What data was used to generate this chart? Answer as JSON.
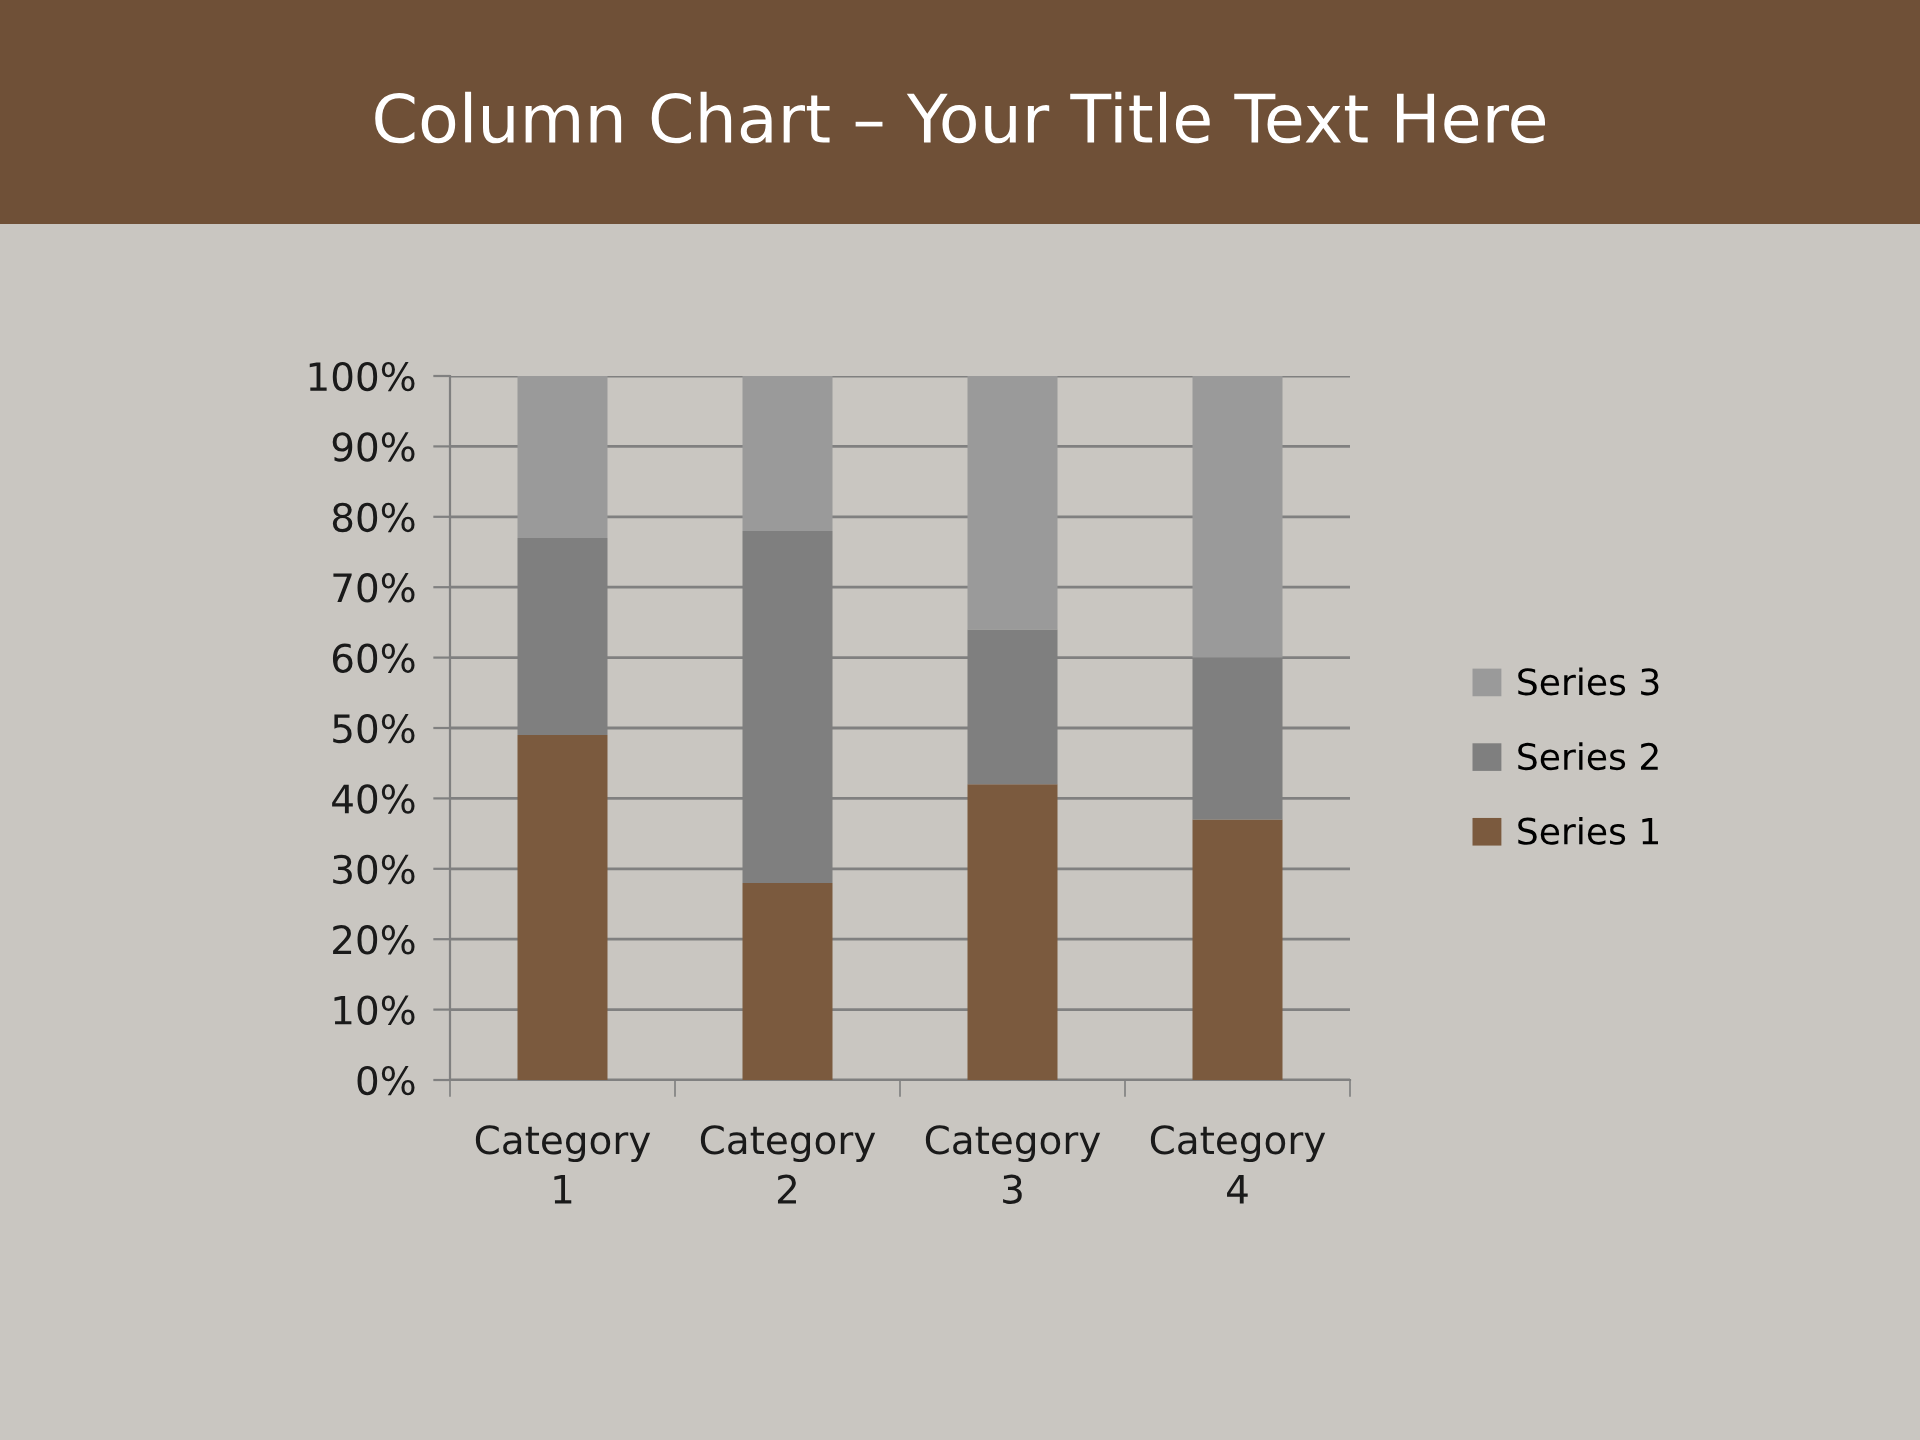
{
  "chart_data": {
    "type": "bar",
    "title": "Column Chart – Your Title Text Here",
    "stacked": true,
    "categories": [
      "Category 1",
      "Category 2",
      "Category 3",
      "Category 4"
    ],
    "series": [
      {
        "name": "Series 1",
        "color": "#7b5a3e",
        "values": [
          49,
          28,
          42,
          37
        ]
      },
      {
        "name": "Series 2",
        "color": "#7f7f7f",
        "values": [
          28,
          50,
          22,
          23
        ]
      },
      {
        "name": "Series 3",
        "color": "#9a9a9a",
        "values": [
          23,
          22,
          36,
          40
        ]
      }
    ],
    "ylim": [
      0,
      100
    ],
    "yticks": [
      {
        "value": 0,
        "label": "0%"
      },
      {
        "value": 10,
        "label": "10%"
      },
      {
        "value": 20,
        "label": "20%"
      },
      {
        "value": 30,
        "label": "30%"
      },
      {
        "value": 40,
        "label": "40%"
      },
      {
        "value": 50,
        "label": "50%"
      },
      {
        "value": 60,
        "label": "60%"
      },
      {
        "value": 70,
        "label": "70%"
      },
      {
        "value": 80,
        "label": "80%"
      },
      {
        "value": 90,
        "label": "90%"
      },
      {
        "value": 100,
        "label": "100%"
      }
    ],
    "grid": "y",
    "legend": "right"
  }
}
